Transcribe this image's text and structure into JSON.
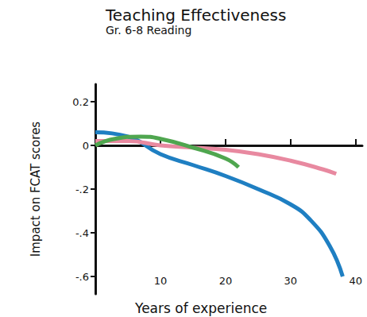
{
  "chart_data": {
    "type": "line",
    "title": "Teaching Effectiveness",
    "subtitle": "Gr. 6-8 Reading",
    "x_label": "Years of experience",
    "y_label": "Impact on FCAT scores",
    "xlim": [
      0,
      41
    ],
    "xticks": [
      10,
      20,
      30,
      40
    ],
    "ylim": [
      -0.68,
      0.28
    ],
    "yticks": [
      0.2,
      0,
      {
        "value": -0.2,
        "label": "-.2"
      },
      {
        "value": -0.4,
        "label": "-.4"
      },
      {
        "value": -0.6,
        "label": "-.6"
      }
    ],
    "grid": false,
    "series": [
      {
        "color": "#1f7fc2",
        "x": [
          0,
          5,
          10,
          15,
          20,
          25,
          30,
          33,
          36,
          38
        ],
        "values": [
          0.06,
          0.04,
          -0.04,
          -0.09,
          -0.14,
          -0.2,
          -0.27,
          -0.34,
          -0.46,
          -0.6
        ]
      },
      {
        "color": "#e889a0",
        "x": [
          0,
          5,
          10,
          15,
          20,
          25,
          30,
          35,
          37
        ],
        "values": [
          0.02,
          0.02,
          0.0,
          -0.01,
          -0.02,
          -0.04,
          -0.07,
          -0.11,
          -0.13
        ]
      },
      {
        "color": "#4fa64f",
        "x": [
          0,
          3,
          7,
          10,
          15,
          20,
          22
        ],
        "values": [
          0.0,
          0.03,
          0.04,
          0.03,
          -0.01,
          -0.06,
          -0.1
        ]
      }
    ]
  }
}
